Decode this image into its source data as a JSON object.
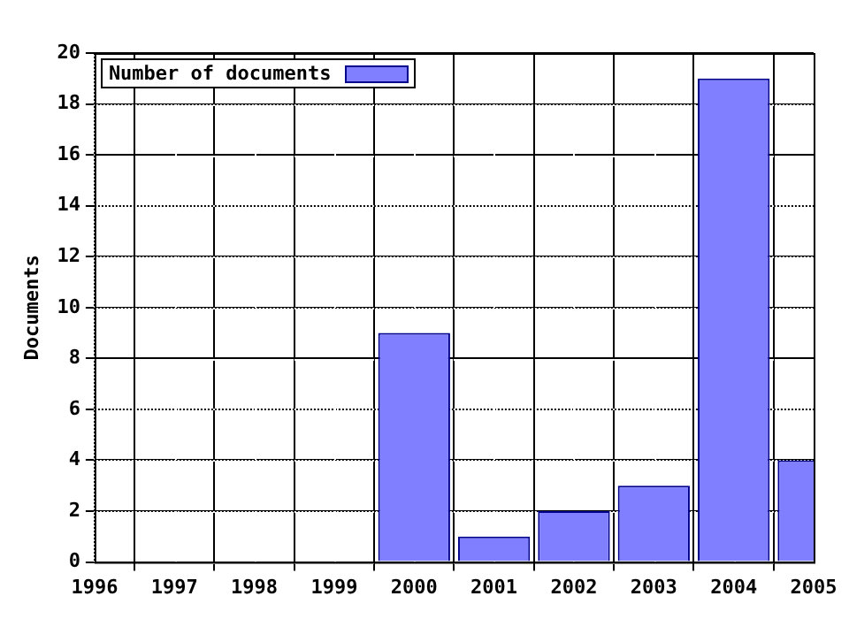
{
  "chart_data": {
    "type": "bar",
    "ylabel": "Documents",
    "x": [
      2000,
      2001,
      2002,
      2003,
      2004,
      2005
    ],
    "series": [
      {
        "name": "Number of documents",
        "color": "#7f7fff",
        "values": [
          9,
          1,
          2,
          3,
          19,
          4
        ]
      }
    ],
    "xlim": [
      1996,
      2005
    ],
    "xticks": [
      1996,
      1997,
      1998,
      1999,
      2000,
      2001,
      2002,
      2003,
      2004,
      2005
    ],
    "ylim": [
      0,
      20
    ],
    "yticks": [
      0,
      2,
      4,
      6,
      8,
      10,
      12,
      14,
      16,
      18,
      20
    ],
    "grid": true,
    "legend": "top left"
  }
}
